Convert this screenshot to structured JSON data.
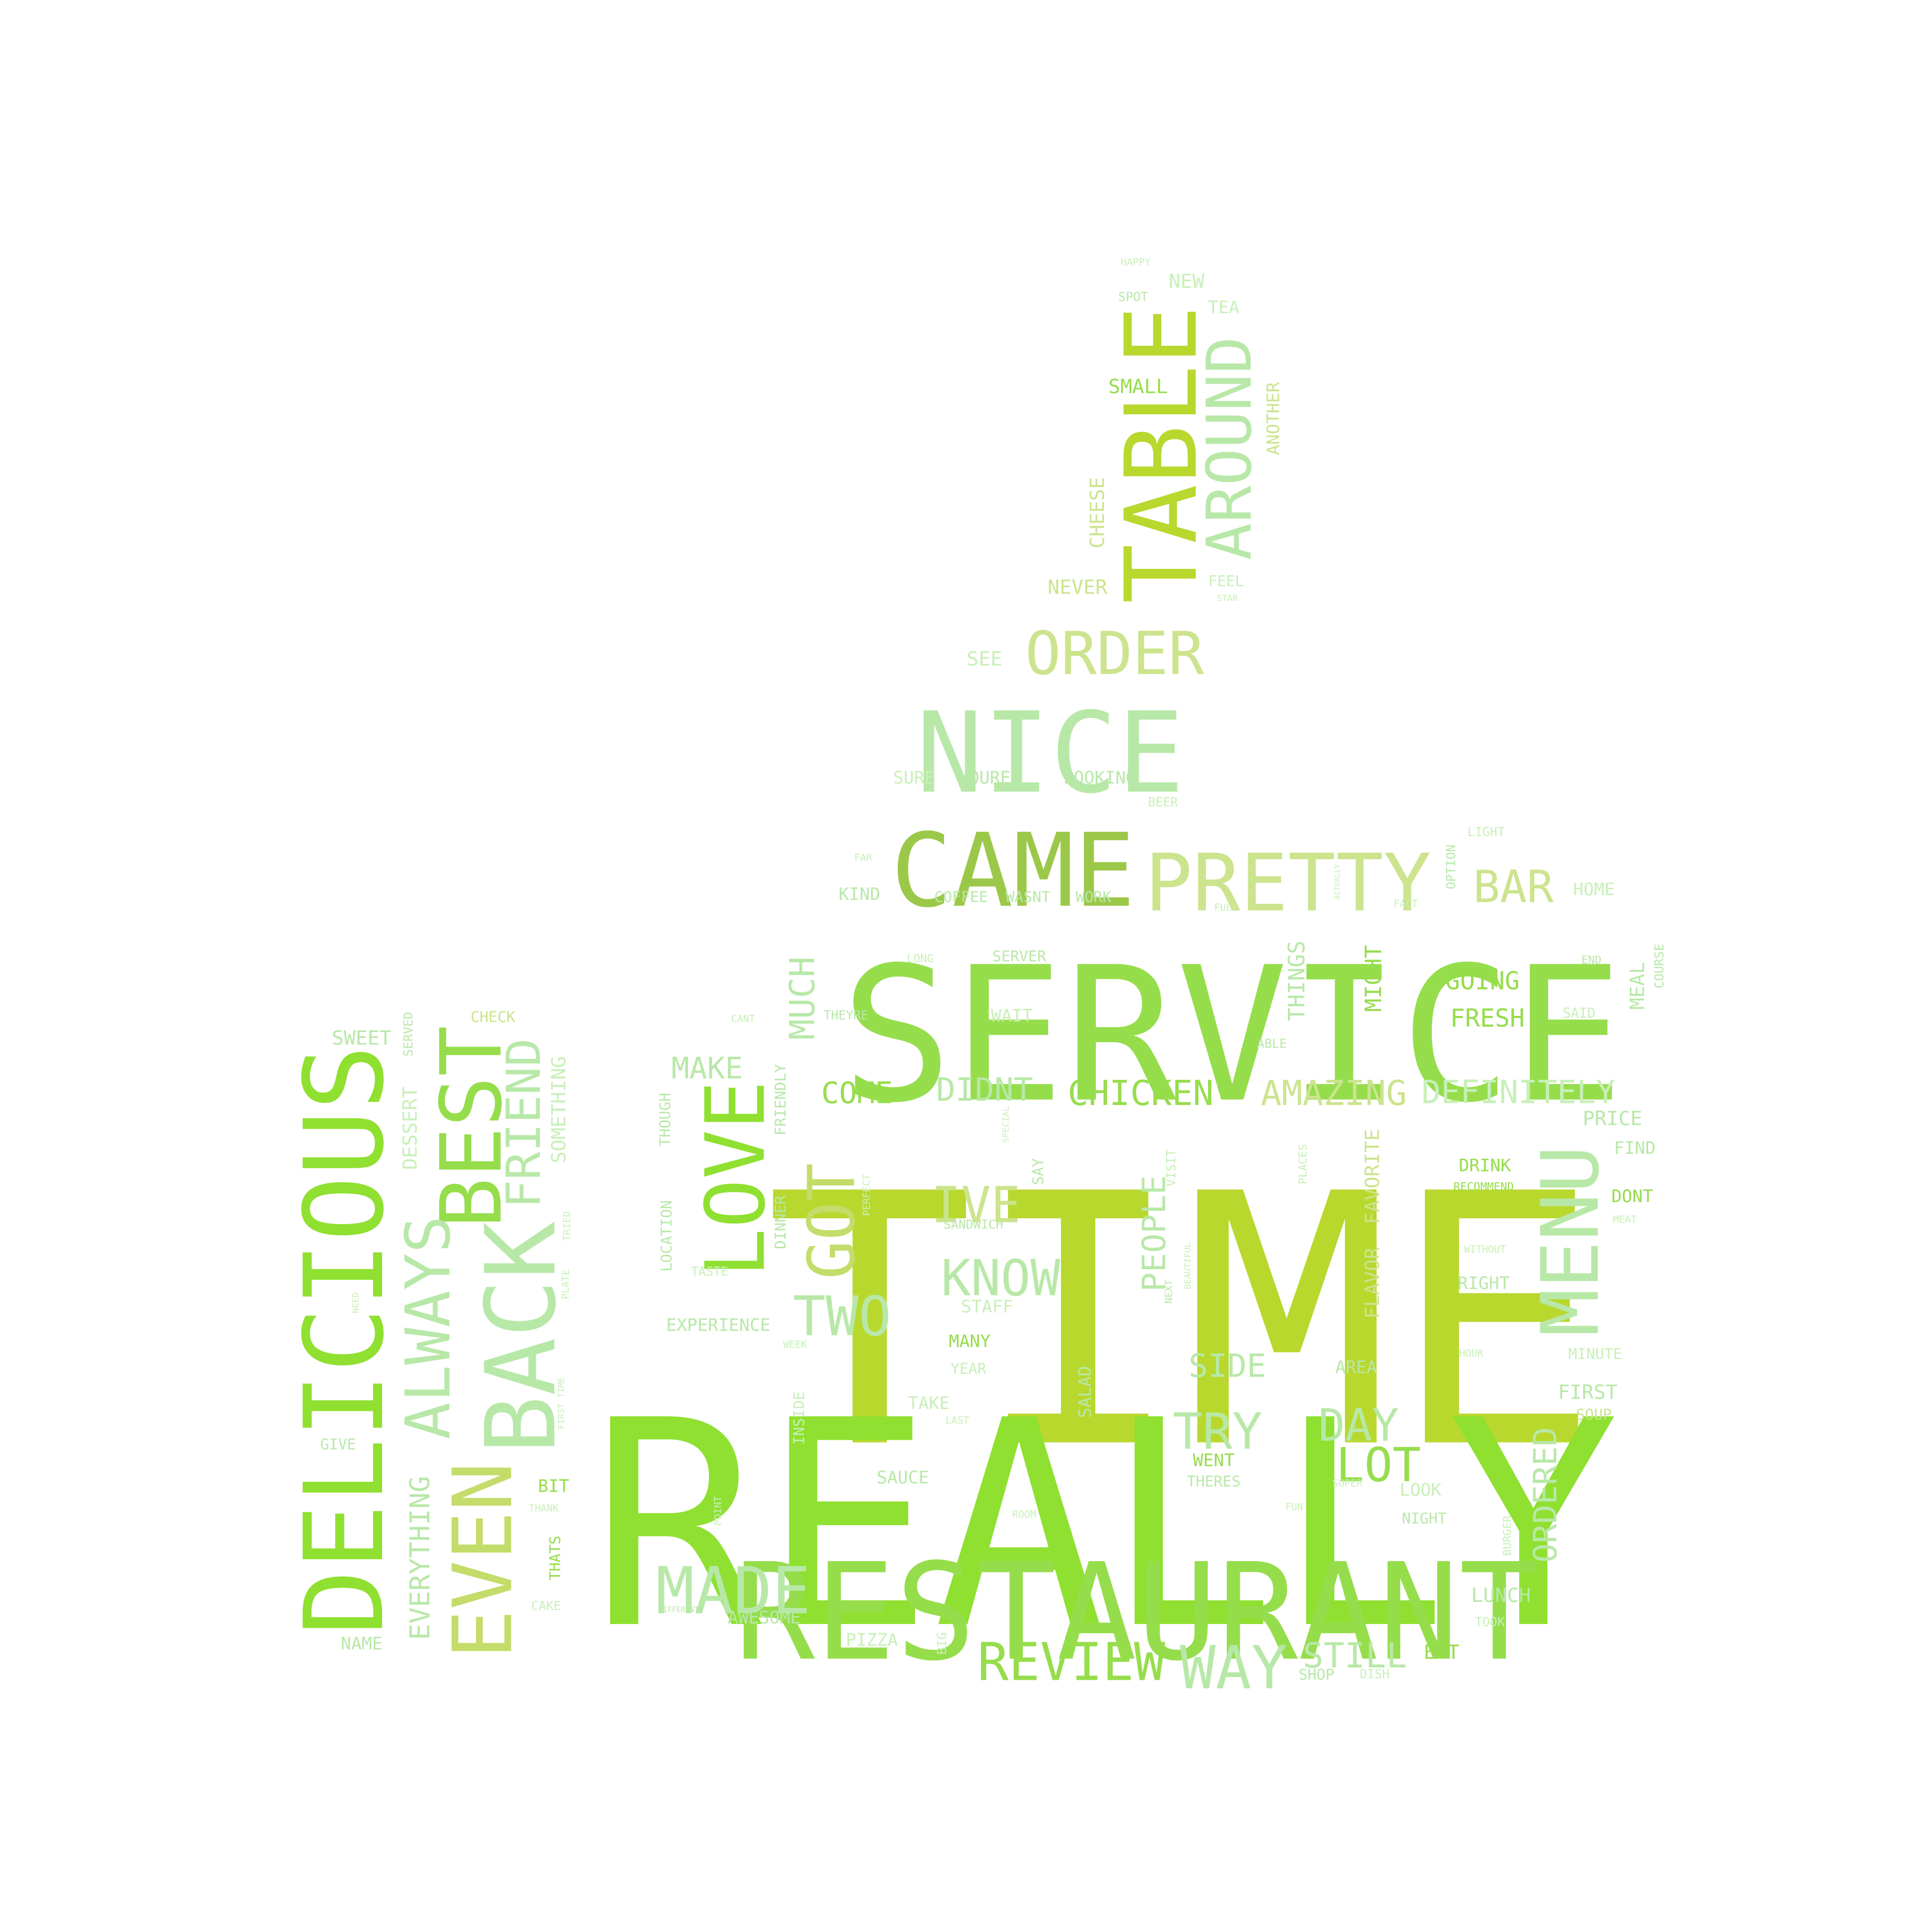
{
  "palette": {
    "background": "#ffffff",
    "lime": "#b8d82e",
    "bright_green": "#8fe030",
    "green": "#96dd4c",
    "olive": "#9cc84a",
    "pale_green": "#b8e8a8",
    "mint": "#c8f0b8",
    "pale_lime": "#cce48e",
    "yellow_green": "#c4dc6a"
  },
  "words": [
    {
      "text": "TIME",
      "color": "lime"
    },
    {
      "text": "REALLY",
      "color": "bright_green"
    },
    {
      "text": "SERVICE",
      "color": "green"
    },
    {
      "text": "RESTAURANT",
      "color": "green"
    },
    {
      "text": "DELICIOUS",
      "color": "bright_green"
    },
    {
      "text": "NICE",
      "color": "pale_green"
    },
    {
      "text": "CAME",
      "color": "olive"
    },
    {
      "text": "PRETTY",
      "color": "pale_lime"
    },
    {
      "text": "LOVE",
      "color": "bright_green"
    },
    {
      "text": "BACK",
      "color": "pale_green"
    },
    {
      "text": "BEST",
      "color": "green"
    },
    {
      "text": "EVEN",
      "color": "yellow_green"
    },
    {
      "text": "TABLE",
      "color": "lime"
    },
    {
      "text": "MENU",
      "color": "pale_green"
    },
    {
      "text": "ALWAYS",
      "color": "pale_green"
    },
    {
      "text": "AROUND",
      "color": "pale_green"
    },
    {
      "text": "ORDER",
      "color": "pale_lime"
    },
    {
      "text": "FRIEND",
      "color": "pale_green"
    },
    {
      "text": "MADE",
      "color": "pale_green"
    },
    {
      "text": "WAY",
      "color": "pale_green"
    },
    {
      "text": "REVIEW",
      "color": "green"
    },
    {
      "text": "GOT",
      "color": "yellow_green"
    },
    {
      "text": "TWO",
      "color": "pale_green"
    },
    {
      "text": "KNOW",
      "color": "pale_green"
    },
    {
      "text": "IVE",
      "color": "pale_lime"
    },
    {
      "text": "TRY",
      "color": "pale_green"
    },
    {
      "text": "LOT",
      "color": "green"
    },
    {
      "text": "DAY",
      "color": "pale_green"
    },
    {
      "text": "BAR",
      "color": "pale_lime"
    },
    {
      "text": "CHICKEN",
      "color": "green"
    },
    {
      "text": "AMAZING",
      "color": "pale_lime"
    },
    {
      "text": "DEFINITELY",
      "color": "mint"
    },
    {
      "text": "DIDNT",
      "color": "pale_green"
    },
    {
      "text": "COME",
      "color": "green"
    },
    {
      "text": "MAKE",
      "color": "pale_green"
    },
    {
      "text": "MUCH",
      "color": "pale_green"
    },
    {
      "text": "PEOPLE",
      "color": "pale_green"
    },
    {
      "text": "EVERYTHING",
      "color": "pale_green"
    },
    {
      "text": "STILL",
      "color": "pale_green"
    },
    {
      "text": "ORDERED",
      "color": "pale_green"
    },
    {
      "text": "SIDE",
      "color": "pale_green"
    },
    {
      "text": "GOING",
      "color": "green"
    },
    {
      "text": "FRESH",
      "color": "green"
    },
    {
      "text": "MIGHT",
      "color": "green"
    },
    {
      "text": "THINGS",
      "color": "pale_green"
    },
    {
      "text": "SOMETHING",
      "color": "mint"
    },
    {
      "text": "DESSERT",
      "color": "mint"
    },
    {
      "text": "SWEET",
      "color": "pale_green"
    },
    {
      "text": "CHECK",
      "color": "pale_lime"
    },
    {
      "text": "SERVED",
      "color": "pale_green"
    },
    {
      "text": "CHEESE",
      "color": "pale_lime"
    },
    {
      "text": "NEVER",
      "color": "pale_lime"
    },
    {
      "text": "SMALL",
      "color": "green"
    },
    {
      "text": "ANOTHER",
      "color": "pale_lime"
    },
    {
      "text": "FEEL",
      "color": "mint"
    },
    {
      "text": "NEW",
      "color": "mint"
    },
    {
      "text": "TEA",
      "color": "mint"
    },
    {
      "text": "HAPPY",
      "color": "mint"
    },
    {
      "text": "SPOT",
      "color": "pale_green"
    },
    {
      "text": "SEE",
      "color": "mint"
    },
    {
      "text": "SURE",
      "color": "mint"
    },
    {
      "text": "YOURE",
      "color": "pale_green"
    },
    {
      "text": "LOOKING",
      "color": "pale_green"
    },
    {
      "text": "BEER",
      "color": "mint"
    },
    {
      "text": "KIND",
      "color": "pale_green"
    },
    {
      "text": "COFFEE",
      "color": "pale_green"
    },
    {
      "text": "WASNT",
      "color": "pale_green"
    },
    {
      "text": "WORK",
      "color": "pale_green"
    },
    {
      "text": "HOME",
      "color": "mint"
    },
    {
      "text": "LIGHT",
      "color": "mint"
    },
    {
      "text": "OPTION",
      "color": "pale_green"
    },
    {
      "text": "SERVER",
      "color": "pale_green"
    },
    {
      "text": "WAIT",
      "color": "mint"
    },
    {
      "text": "THEYRE",
      "color": "pale_green"
    },
    {
      "text": "MEAL",
      "color": "pale_green"
    },
    {
      "text": "COURSE",
      "color": "pale_green"
    },
    {
      "text": "END",
      "color": "pale_green"
    },
    {
      "text": "SAID",
      "color": "mint"
    },
    {
      "text": "ABLE",
      "color": "pale_green"
    },
    {
      "text": "PRICE",
      "color": "pale_green"
    },
    {
      "text": "FIND",
      "color": "pale_green"
    },
    {
      "text": "DONT",
      "color": "green"
    },
    {
      "text": "DRINK",
      "color": "green"
    },
    {
      "text": "RECOMMEND",
      "color": "green"
    },
    {
      "text": "RIGHT",
      "color": "pale_green"
    },
    {
      "text": "WITHOUT",
      "color": "mint"
    },
    {
      "text": "MINUTE",
      "color": "mint"
    },
    {
      "text": "FIRST",
      "color": "pale_green"
    },
    {
      "text": "SOUP",
      "color": "pale_lime"
    },
    {
      "text": "FAVORITE",
      "color": "pale_lime"
    },
    {
      "text": "FLAVOR",
      "color": "pale_lime"
    },
    {
      "text": "PLACES",
      "color": "mint"
    },
    {
      "text": "VISIT",
      "color": "mint"
    },
    {
      "text": "SAY",
      "color": "pale_green"
    },
    {
      "text": "SANDWICH",
      "color": "pale_green"
    },
    {
      "text": "STAFF",
      "color": "mint"
    },
    {
      "text": "MANY",
      "color": "green"
    },
    {
      "text": "YEAR",
      "color": "mint"
    },
    {
      "text": "TAKE",
      "color": "mint"
    },
    {
      "text": "SALAD",
      "color": "pale_green"
    },
    {
      "text": "AREA",
      "color": "pale_green"
    },
    {
      "text": "WENT",
      "color": "green"
    },
    {
      "text": "THERES",
      "color": "pale_green"
    },
    {
      "text": "LOOK",
      "color": "mint"
    },
    {
      "text": "NIGHT",
      "color": "pale_green"
    },
    {
      "text": "LUNCH",
      "color": "pale_green"
    },
    {
      "text": "TOOK",
      "color": "mint"
    },
    {
      "text": "EAT",
      "color": "green"
    },
    {
      "text": "SHOP",
      "color": "pale_green"
    },
    {
      "text": "DISH",
      "color": "mint"
    },
    {
      "text": "PIZZA",
      "color": "mint"
    },
    {
      "text": "SAUCE",
      "color": "pale_green"
    },
    {
      "text": "AWESOME",
      "color": "pale_green"
    },
    {
      "text": "EXPERIENCE",
      "color": "pale_green"
    },
    {
      "text": "LOCATION",
      "color": "pale_green"
    },
    {
      "text": "THOUGH",
      "color": "pale_green"
    },
    {
      "text": "FRIENDLY",
      "color": "pale_green"
    },
    {
      "text": "DINNER",
      "color": "pale_green"
    },
    {
      "text": "TASTE",
      "color": "mint"
    },
    {
      "text": "PERFECT",
      "color": "mint"
    },
    {
      "text": "INSIDE",
      "color": "mint"
    },
    {
      "text": "BIT",
      "color": "green"
    },
    {
      "text": "THATS",
      "color": "green"
    },
    {
      "text": "CAKE",
      "color": "mint"
    },
    {
      "text": "NAME",
      "color": "pale_green"
    },
    {
      "text": "GIVE",
      "color": "pale_green"
    },
    {
      "text": "TRIED",
      "color": "mint"
    },
    {
      "text": "PLATE",
      "color": "mint"
    },
    {
      "text": "THANK",
      "color": "mint"
    },
    {
      "text": "FIRST TIME",
      "color": "mint"
    },
    {
      "text": "LONG",
      "color": "mint"
    },
    {
      "text": "BIG",
      "color": "mint"
    },
    {
      "text": "BURGER",
      "color": "mint"
    },
    {
      "text": "WEEK",
      "color": "mint"
    },
    {
      "text": "ROOM",
      "color": "mint"
    },
    {
      "text": "FUN",
      "color": "mint"
    },
    {
      "text": "SUPER",
      "color": "mint"
    },
    {
      "text": "HOUR",
      "color": "mint"
    },
    {
      "text": "MEAT",
      "color": "mint"
    },
    {
      "text": "POINT",
      "color": "mint"
    },
    {
      "text": "LAST",
      "color": "mint"
    },
    {
      "text": "FULL",
      "color": "mint"
    },
    {
      "text": "FACT",
      "color": "mint"
    },
    {
      "text": "CANT",
      "color": "mint"
    },
    {
      "text": "FAR",
      "color": "mint"
    },
    {
      "text": "ACTUALLY",
      "color": "mint"
    },
    {
      "text": "SPECIAL",
      "color": "mint"
    },
    {
      "text": "DIFFERENT",
      "color": "pale_green"
    },
    {
      "text": "STAR",
      "color": "mint"
    },
    {
      "text": "BEAUTIFUL",
      "color": "mint"
    },
    {
      "text": "NEED",
      "color": "mint"
    },
    {
      "text": "NEXT",
      "color": "pale_green"
    }
  ]
}
